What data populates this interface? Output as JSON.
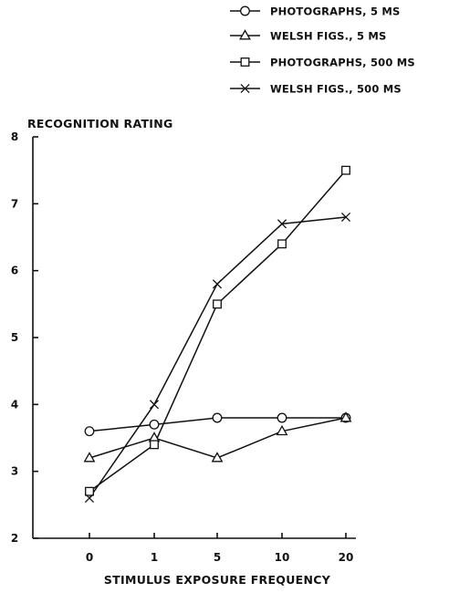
{
  "chart_data": {
    "type": "line",
    "title": "",
    "ylabel": "RECOGNITION RATING",
    "xlabel": "STIMULUS EXPOSURE FREQUENCY",
    "categories": [
      "0",
      "1",
      "5",
      "10",
      "20"
    ],
    "ylim": [
      2,
      8
    ],
    "yticks": [
      "2",
      "3",
      "4",
      "5",
      "6",
      "7",
      "8"
    ],
    "grid": false,
    "legend_position": "top-right",
    "series": [
      {
        "name": "PHOTOGRAPHS, 5 MS",
        "marker": "circle",
        "values": [
          3.6,
          3.7,
          3.8,
          3.8,
          3.8
        ]
      },
      {
        "name": "WELSH FIGS., 5 MS",
        "marker": "triangle",
        "values": [
          3.2,
          3.5,
          3.2,
          3.6,
          3.8
        ]
      },
      {
        "name": "PHOTOGRAPHS, 500 MS",
        "marker": "square",
        "values": [
          2.7,
          3.4,
          5.5,
          6.4,
          7.5
        ]
      },
      {
        "name": "WELSH FIGS., 500 MS",
        "marker": "x",
        "values": [
          2.6,
          4.0,
          5.8,
          6.7,
          6.8
        ]
      }
    ]
  }
}
